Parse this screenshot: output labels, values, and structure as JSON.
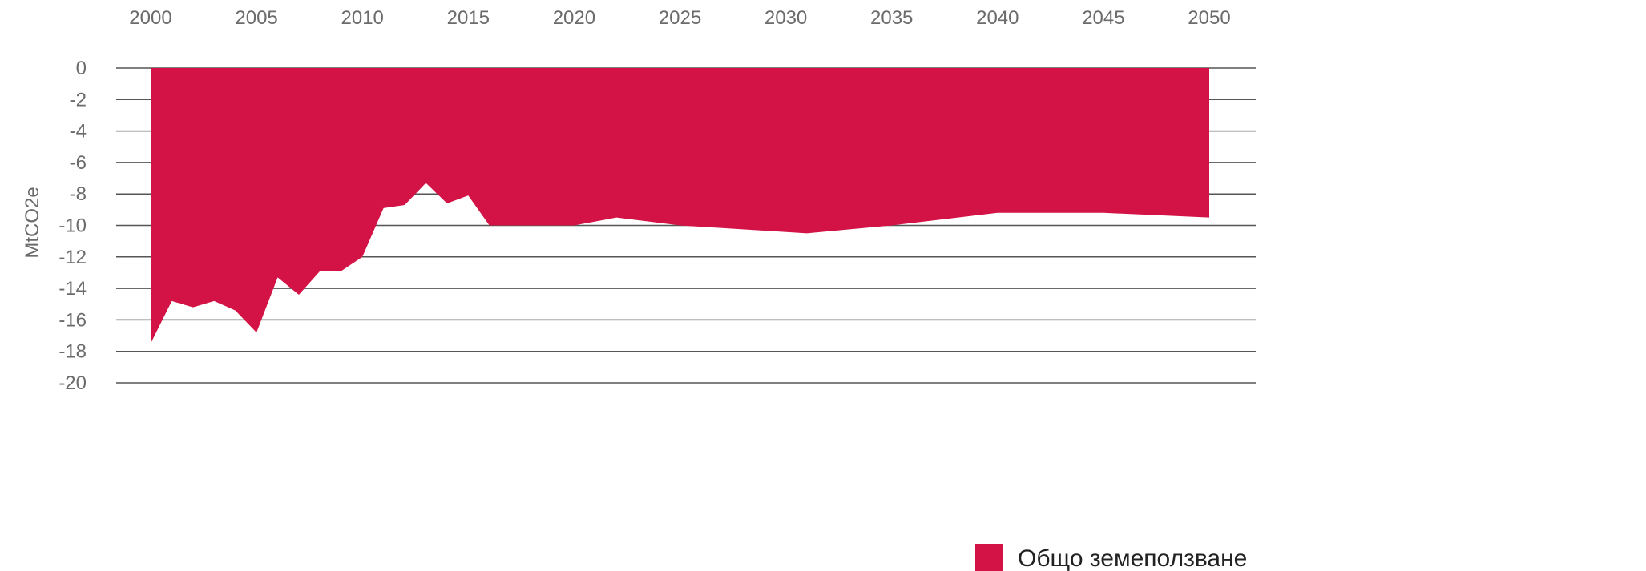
{
  "chart_data": {
    "type": "area",
    "title": "",
    "xlabel": "",
    "ylabel": "MtCO2e",
    "x_axis_position": "top",
    "xlim": [
      2000,
      2050
    ],
    "x_ticks": [
      "2000",
      "2005",
      "2010",
      "2015",
      "2020",
      "2025",
      "2030",
      "2035",
      "2040",
      "2045",
      "2050"
    ],
    "ylim": [
      -20,
      0
    ],
    "y_ticks": [
      "0",
      "-2",
      "-4",
      "-6",
      "-8",
      "-10",
      "-12",
      "-14",
      "-16",
      "-18",
      "-20"
    ],
    "grid": "horizontal",
    "legend_position": "bottom-right",
    "colors": {
      "series": "#d31245",
      "grid": "#555555",
      "text": "#6b6b6b"
    },
    "x": [
      2000,
      2001,
      2002,
      2003,
      2004,
      2005,
      2006,
      2007,
      2008,
      2009,
      2010,
      2011,
      2012,
      2013,
      2014,
      2015,
      2016,
      2018,
      2020,
      2022,
      2025,
      2031,
      2035,
      2040,
      2045,
      2050
    ],
    "series": [
      {
        "name": "Общо земеползване",
        "values": [
          -17.5,
          -14.8,
          -15.2,
          -14.8,
          -15.4,
          -16.8,
          -13.3,
          -14.4,
          -12.9,
          -12.9,
          -12.0,
          -8.9,
          -8.7,
          -7.3,
          -8.6,
          -8.1,
          -10.0,
          -10.0,
          -10.0,
          -9.5,
          -10.0,
          -10.5,
          -10.0,
          -9.2,
          -9.2,
          -9.5
        ]
      }
    ]
  }
}
